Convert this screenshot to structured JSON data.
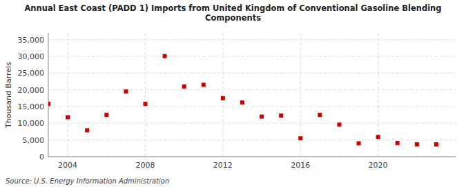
{
  "chart_data": {
    "type": "scatter",
    "title": "Annual East Coast (PADD 1) Imports from United Kingdom of Conventional Gasoline Blending\nComponents",
    "ylabel": "Thousand Barrels",
    "annotations": [
      "Source: U.S. Energy Information Administration"
    ],
    "x": [
      2003,
      2004,
      2005,
      2006,
      2007,
      2008,
      2009,
      2010,
      2011,
      2012,
      2013,
      2014,
      2015,
      2016,
      2017,
      2018,
      2019,
      2020,
      2021,
      2022,
      2023
    ],
    "values": [
      15800,
      11800,
      7900,
      12500,
      19500,
      15800,
      30100,
      21000,
      21500,
      17500,
      16200,
      12000,
      12300,
      5500,
      12500,
      9600,
      4000,
      5900,
      4100,
      3700,
      3700
    ],
    "color": "#cc0000",
    "marker": "square",
    "xlim": [
      2003.0,
      2024.0
    ],
    "ylim": [
      0,
      37000
    ],
    "xticks": [
      2004,
      2008,
      2012,
      2016,
      2020
    ],
    "yticks": [
      0,
      {
        "value": 5000,
        "label": "5,000"
      },
      {
        "value": 10000,
        "label": "10,000"
      },
      {
        "value": 15000,
        "label": "15,000"
      },
      {
        "value": 20000,
        "label": "20,000"
      },
      {
        "value": 25000,
        "label": "25,000"
      },
      {
        "value": 30000,
        "label": "30,000"
      },
      {
        "value": 35000,
        "label": "35,000"
      }
    ],
    "grid": true
  }
}
